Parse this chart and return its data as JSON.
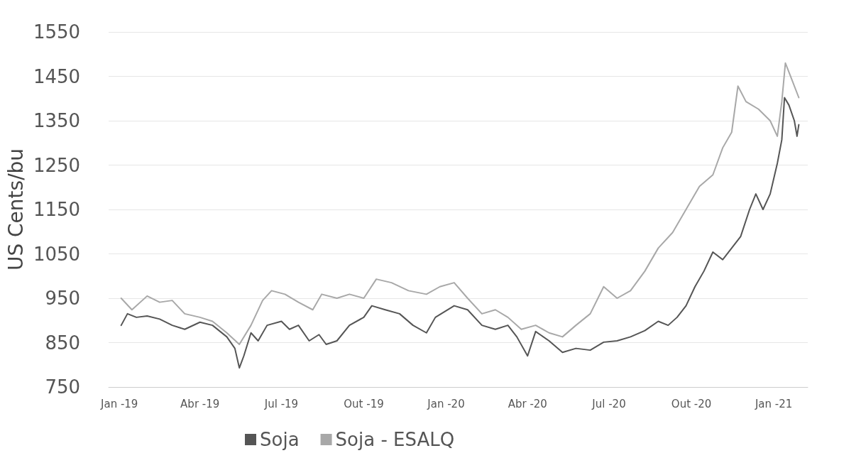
{
  "chart_data": {
    "type": "line",
    "ylabel": "US Cents/bu",
    "xlim": [
      "2018-12-20",
      "2021-02-08"
    ],
    "xticks": [
      {
        "value": "2019-01-01",
        "label": "Jan -19"
      },
      {
        "value": "2019-04-01",
        "label": "Abr -19"
      },
      {
        "value": "2019-07-01",
        "label": "Jul -19"
      },
      {
        "value": "2019-10-01",
        "label": "Out -19"
      },
      {
        "value": "2020-01-01",
        "label": "Jan -20"
      },
      {
        "value": "2020-04-01",
        "label": "Abr -20"
      },
      {
        "value": "2020-07-01",
        "label": "Jul -20"
      },
      {
        "value": "2020-10-01",
        "label": "Out -20"
      },
      {
        "value": "2021-01-01",
        "label": "Jan -21"
      }
    ],
    "ylim": [
      750,
      1550
    ],
    "yticks": [
      750,
      850,
      950,
      1050,
      1150,
      1250,
      1350,
      1450,
      1550
    ],
    "grid": "y",
    "legend": "bottom",
    "marker": "none",
    "line_style": "solid",
    "series": [
      {
        "name": "Soja",
        "color": "#555555",
        "x": [
          "2019-01-03",
          "2019-01-10",
          "2019-01-20",
          "2019-02-01",
          "2019-02-15",
          "2019-03-01",
          "2019-03-15",
          "2019-04-01",
          "2019-04-15",
          "2019-05-01",
          "2019-05-10",
          "2019-05-15",
          "2019-05-20",
          "2019-05-28",
          "2019-06-05",
          "2019-06-15",
          "2019-07-01",
          "2019-07-10",
          "2019-07-20",
          "2019-08-01",
          "2019-08-12",
          "2019-08-20",
          "2019-09-01",
          "2019-09-15",
          "2019-10-01",
          "2019-10-10",
          "2019-10-25",
          "2019-11-10",
          "2019-11-25",
          "2019-12-10",
          "2019-12-20",
          "2020-01-10",
          "2020-01-25",
          "2020-02-10",
          "2020-02-25",
          "2020-03-10",
          "2020-03-20",
          "2020-04-01",
          "2020-04-10",
          "2020-04-25",
          "2020-05-10",
          "2020-05-25",
          "2020-06-10",
          "2020-06-25",
          "2020-07-10",
          "2020-07-25",
          "2020-08-10",
          "2020-08-25",
          "2020-09-05",
          "2020-09-15",
          "2020-09-25",
          "2020-10-05",
          "2020-10-15",
          "2020-10-25",
          "2020-11-05",
          "2020-11-15",
          "2020-11-25",
          "2020-12-05",
          "2020-12-12",
          "2020-12-20",
          "2020-12-28",
          "2021-01-05",
          "2021-01-10",
          "2021-01-13",
          "2021-01-18",
          "2021-01-24",
          "2021-01-27",
          "2021-01-29"
        ],
        "values": [
          889,
          915,
          907,
          910,
          903,
          889,
          880,
          896,
          889,
          863,
          837,
          793,
          820,
          872,
          854,
          889,
          898,
          880,
          889,
          854,
          868,
          846,
          854,
          889,
          907,
          933,
          924,
          915,
          889,
          872,
          907,
          933,
          924,
          889,
          880,
          889,
          863,
          820,
          875,
          854,
          828,
          837,
          833,
          851,
          854,
          863,
          877,
          898,
          889,
          907,
          933,
          976,
          1011,
          1054,
          1037,
          1063,
          1089,
          1150,
          1185,
          1150,
          1185,
          1254,
          1307,
          1402,
          1385,
          1350,
          1315,
          1341
        ]
      },
      {
        "name": "Soja - ESALQ",
        "color": "#a8a8a8",
        "x": [
          "2019-01-03",
          "2019-01-15",
          "2019-02-01",
          "2019-02-15",
          "2019-03-01",
          "2019-03-15",
          "2019-04-01",
          "2019-04-15",
          "2019-05-01",
          "2019-05-15",
          "2019-05-28",
          "2019-06-10",
          "2019-06-20",
          "2019-07-05",
          "2019-07-20",
          "2019-08-05",
          "2019-08-15",
          "2019-09-01",
          "2019-09-15",
          "2019-10-01",
          "2019-10-15",
          "2019-11-01",
          "2019-11-20",
          "2019-12-10",
          "2019-12-25",
          "2020-01-10",
          "2020-01-25",
          "2020-02-10",
          "2020-02-25",
          "2020-03-10",
          "2020-03-25",
          "2020-04-10",
          "2020-04-25",
          "2020-05-10",
          "2020-05-25",
          "2020-06-10",
          "2020-06-25",
          "2020-07-10",
          "2020-07-25",
          "2020-08-10",
          "2020-08-25",
          "2020-09-10",
          "2020-09-25",
          "2020-10-10",
          "2020-10-25",
          "2020-11-05",
          "2020-11-15",
          "2020-11-22",
          "2020-12-01",
          "2020-12-15",
          "2020-12-28",
          "2021-01-05",
          "2021-01-10",
          "2021-01-14",
          "2021-01-20",
          "2021-01-29"
        ],
        "values": [
          950,
          924,
          955,
          941,
          945,
          915,
          907,
          898,
          872,
          846,
          889,
          945,
          967,
          959,
          941,
          924,
          959,
          950,
          959,
          950,
          993,
          985,
          967,
          959,
          976,
          985,
          950,
          915,
          924,
          907,
          880,
          889,
          872,
          863,
          889,
          915,
          976,
          950,
          967,
          1011,
          1063,
          1098,
          1150,
          1202,
          1228,
          1289,
          1324,
          1428,
          1393,
          1376,
          1350,
          1315,
          1393,
          1480,
          1449,
          1402
        ]
      }
    ]
  }
}
